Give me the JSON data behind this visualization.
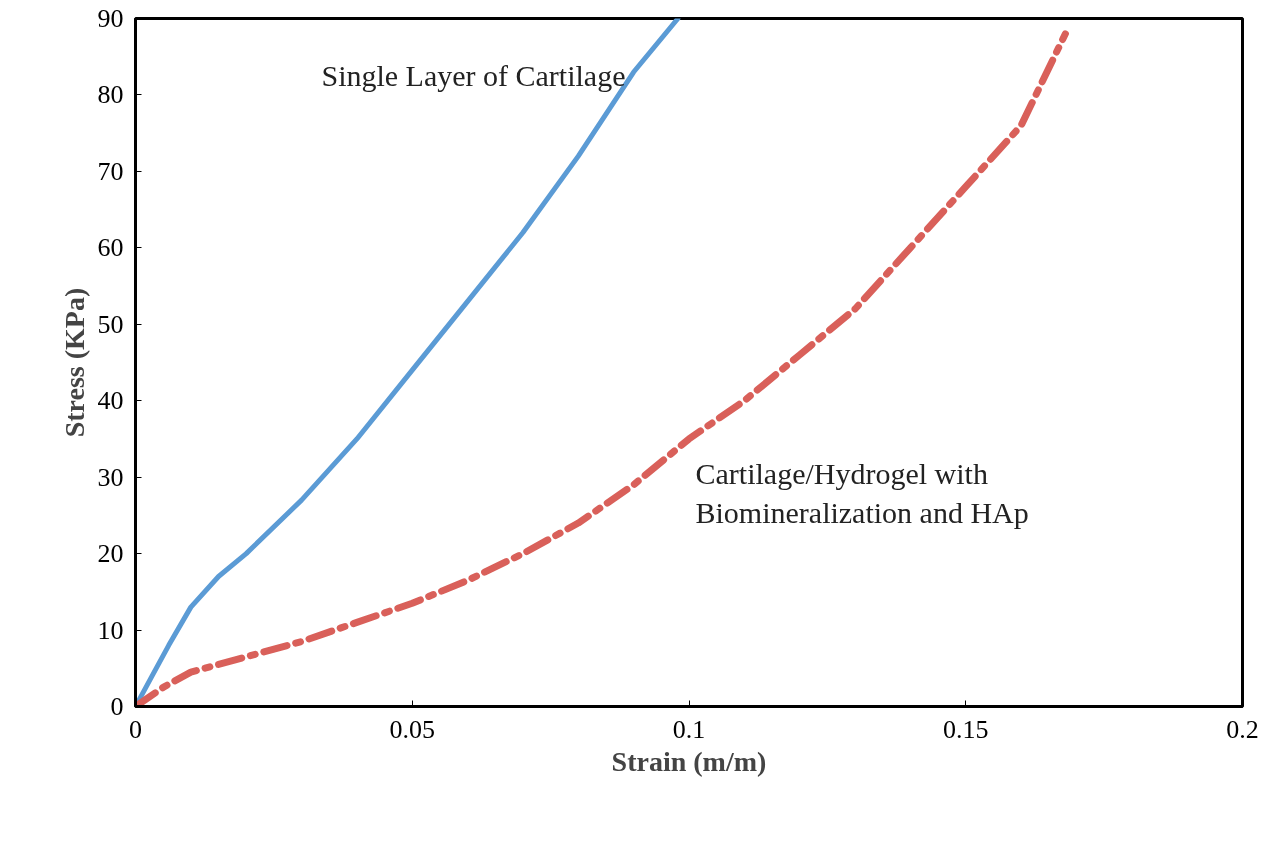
{
  "chart_data": {
    "type": "line",
    "xlabel": "Strain (m/m)",
    "ylabel": "Stress (KPa)",
    "xlim": [
      0,
      0.2
    ],
    "ylim": [
      0,
      90
    ],
    "xticks": [
      0,
      0.05,
      0.1,
      0.15,
      0.2
    ],
    "yticks": [
      0,
      10,
      20,
      30,
      40,
      50,
      60,
      70,
      80,
      90
    ],
    "grid": false,
    "series": [
      {
        "name": "Single Layer of Cartilage",
        "color": "#5b9bd5",
        "line_style": "solid",
        "x": [
          0,
          0.003,
          0.006,
          0.01,
          0.015,
          0.02,
          0.03,
          0.04,
          0.05,
          0.06,
          0.07,
          0.08,
          0.09,
          0.098
        ],
        "values": [
          0,
          4,
          8,
          13,
          17,
          20,
          27,
          35,
          44,
          53,
          62,
          72,
          83,
          90
        ]
      },
      {
        "name": "Cartilage/Hydrogel with\nBiomineralization and HAp",
        "color": "#d9605a",
        "line_style": "dashdot",
        "x": [
          0,
          0.005,
          0.01,
          0.02,
          0.03,
          0.04,
          0.05,
          0.06,
          0.07,
          0.08,
          0.09,
          0.1,
          0.11,
          0.12,
          0.13,
          0.14,
          0.15,
          0.16,
          0.168
        ],
        "values": [
          0,
          2.5,
          4.5,
          6.5,
          8.5,
          11,
          13.5,
          16.5,
          20,
          24,
          29,
          35,
          40,
          46,
          52,
          60,
          68,
          76,
          88
        ]
      }
    ]
  }
}
